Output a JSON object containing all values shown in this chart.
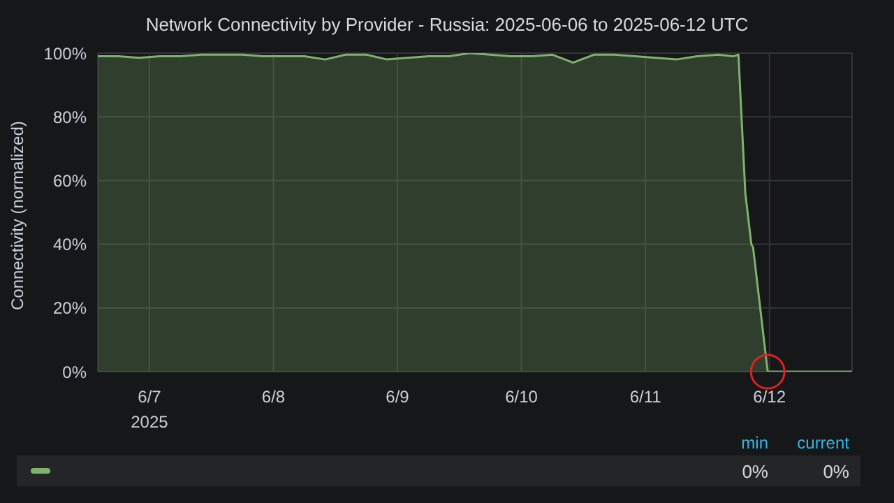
{
  "chart_data": {
    "type": "area",
    "title": "Network Connectivity by Provider - Russia: 2025-06-06 to 2025-06-12 UTC",
    "ylabel": "Connectivity (normalized)",
    "x": [
      "2025-06-06T14:00",
      "2025-06-06T18:00",
      "2025-06-06T22:00",
      "2025-06-07T02:00",
      "2025-06-07T06:00",
      "2025-06-07T10:00",
      "2025-06-07T14:00",
      "2025-06-07T18:00",
      "2025-06-07T22:00",
      "2025-06-08T02:00",
      "2025-06-08T06:00",
      "2025-06-08T10:00",
      "2025-06-08T14:00",
      "2025-06-08T18:00",
      "2025-06-08T22:00",
      "2025-06-09T02:00",
      "2025-06-09T06:00",
      "2025-06-09T10:00",
      "2025-06-09T14:00",
      "2025-06-09T18:00",
      "2025-06-09T22:00",
      "2025-06-10T02:00",
      "2025-06-10T06:00",
      "2025-06-10T10:00",
      "2025-06-10T14:00",
      "2025-06-10T18:00",
      "2025-06-10T22:00",
      "2025-06-11T02:00",
      "2025-06-11T06:00",
      "2025-06-11T10:00",
      "2025-06-11T14:00",
      "2025-06-11T17:00",
      "2025-06-11T18:00",
      "2025-06-11T19:20",
      "2025-06-11T20:30",
      "2025-06-11T20:50",
      "2025-06-11T23:40",
      "2025-06-12T16:00"
    ],
    "series": [
      {
        "color": "#7eb26d",
        "values": [
          99,
          99,
          98.5,
          99,
          99,
          99.5,
          99.5,
          99.5,
          99,
          99,
          99,
          98,
          99.5,
          99.5,
          98,
          98.5,
          99,
          99,
          100,
          99.5,
          99,
          99,
          99.5,
          97,
          99.5,
          99.5,
          99,
          98.5,
          98,
          99,
          99.5,
          99,
          99.5,
          56,
          40,
          39,
          0,
          0
        ]
      }
    ],
    "xlim": [
      "2025-06-06T14:00",
      "2025-06-12T16:00"
    ],
    "xticks": [
      {
        "value": "2025-06-07",
        "label": "6/7\n2025"
      },
      {
        "value": "2025-06-08",
        "label": "6/8"
      },
      {
        "value": "2025-06-09",
        "label": "6/9"
      },
      {
        "value": "2025-06-10",
        "label": "6/10"
      },
      {
        "value": "2025-06-11",
        "label": "6/11"
      },
      {
        "value": "2025-06-12",
        "label": "6/12"
      }
    ],
    "ylim": [
      0,
      100
    ],
    "yticks": [
      {
        "value": 0,
        "label": "0%"
      },
      {
        "value": 20,
        "label": "20%"
      },
      {
        "value": 40,
        "label": "40%"
      },
      {
        "value": 60,
        "label": "60%"
      },
      {
        "value": 80,
        "label": "80%"
      },
      {
        "value": 100,
        "label": "100%"
      }
    ],
    "grid": true,
    "marker": "none",
    "annotations": [
      "min",
      "current",
      "0%",
      "0%"
    ]
  }
}
